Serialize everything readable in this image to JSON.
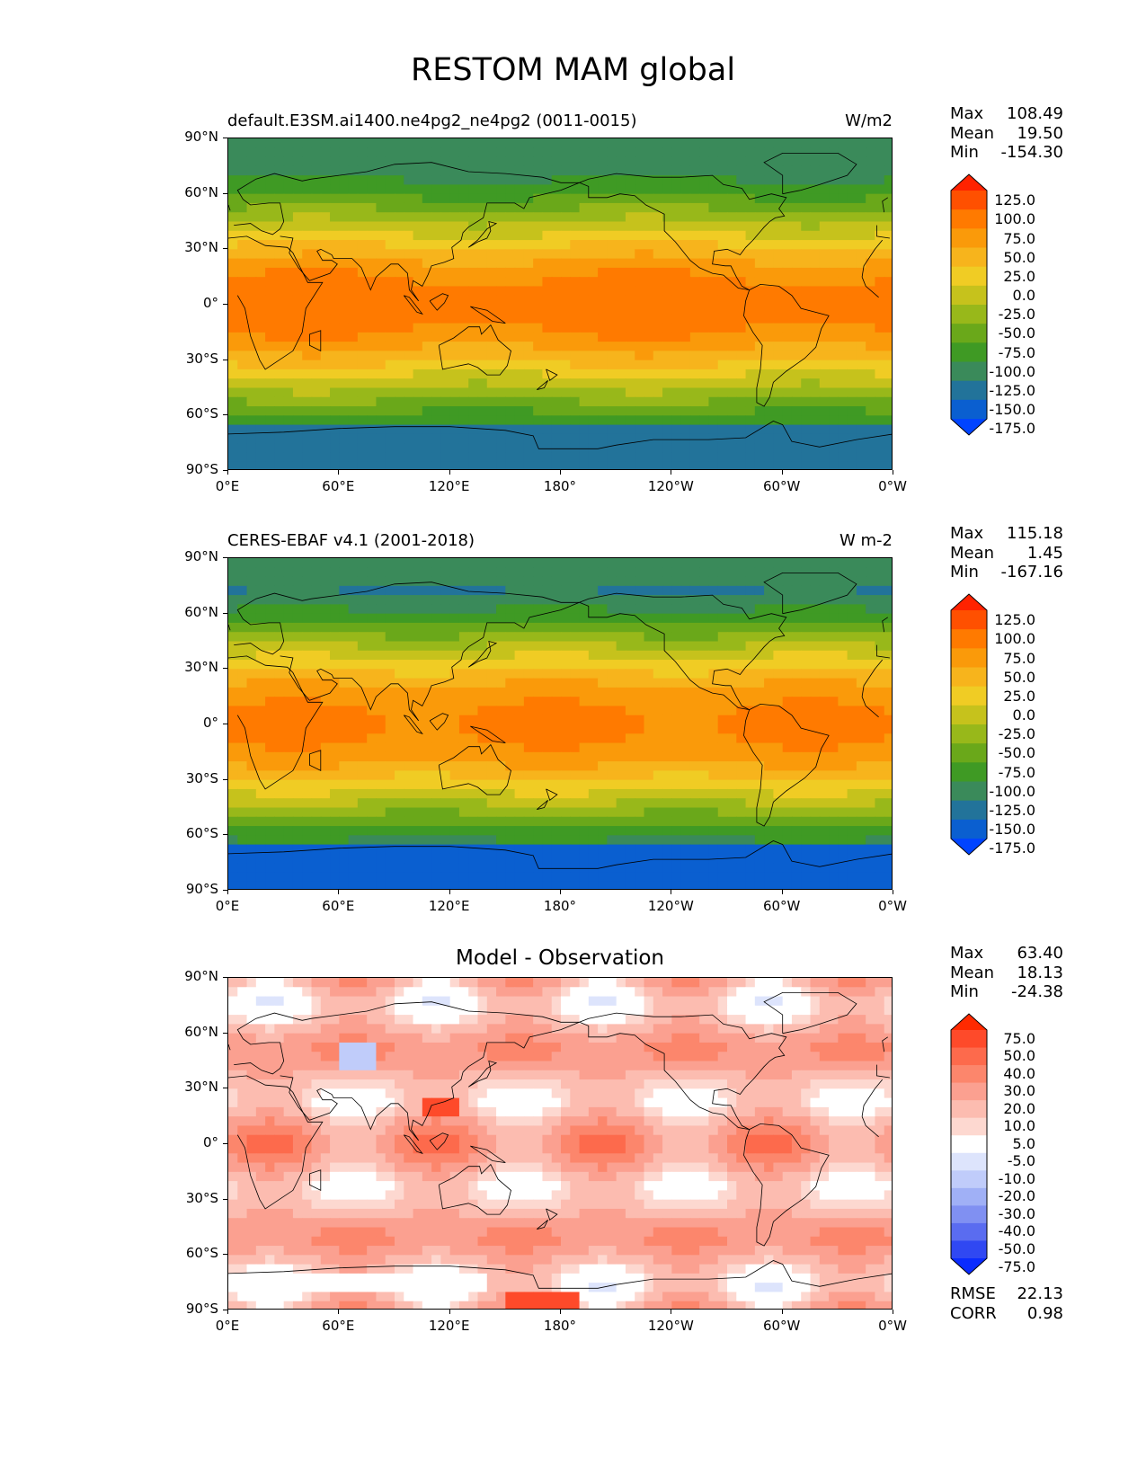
{
  "figure": {
    "title": "RESTOM MAM global"
  },
  "axes": {
    "lat_ticks": [
      "90°N",
      "60°N",
      "30°N",
      "0°",
      "30°S",
      "60°S",
      "90°S"
    ],
    "lon_ticks": [
      "0°E",
      "60°E",
      "120°E",
      "180°",
      "120°W",
      "60°W",
      "0°W"
    ]
  },
  "panels": [
    {
      "id": "model",
      "title": "default.E3SM.ai1400.ne4pg2_ne4pg2 (0011-0015)",
      "title_centered": false,
      "units": "W/m2",
      "stats": [
        {
          "label": "Max",
          "value": "108.49"
        },
        {
          "label": "Mean",
          "value": "19.50"
        },
        {
          "label": "Min",
          "value": "-154.30"
        }
      ],
      "colorbar": {
        "labels": [
          "125.0",
          "100.0",
          "75.0",
          "50.0",
          "25.0",
          "0.0",
          "-25.0",
          "-50.0",
          "-75.0",
          "-100.0",
          "-125.0",
          "-150.0",
          "-175.0"
        ],
        "colors": [
          "#ff2200",
          "#ff5000",
          "#ff7a00",
          "#fa9a0a",
          "#f7b41c",
          "#f0cc24",
          "#c6c21c",
          "#98b81a",
          "#6aa81a",
          "#3f9a24",
          "#3a8a5a",
          "#22739a",
          "#0a5fd0",
          "#0044ff"
        ]
      },
      "field": "model"
    },
    {
      "id": "obs",
      "title": "CERES-EBAF v4.1 (2001-2018)",
      "title_centered": false,
      "units": "W m-2",
      "stats": [
        {
          "label": "Max",
          "value": "115.18"
        },
        {
          "label": "Mean",
          "value": "1.45"
        },
        {
          "label": "Min",
          "value": "-167.16"
        }
      ],
      "colorbar": {
        "labels": [
          "125.0",
          "100.0",
          "75.0",
          "50.0",
          "25.0",
          "0.0",
          "-25.0",
          "-50.0",
          "-75.0",
          "-100.0",
          "-125.0",
          "-150.0",
          "-175.0"
        ],
        "colors": [
          "#ff2200",
          "#ff5000",
          "#ff7a00",
          "#fa9a0a",
          "#f7b41c",
          "#f0cc24",
          "#c6c21c",
          "#98b81a",
          "#6aa81a",
          "#3f9a24",
          "#3a8a5a",
          "#22739a",
          "#0a5fd0",
          "#0044ff"
        ]
      },
      "field": "obs"
    },
    {
      "id": "diff",
      "title": "Model - Observation",
      "title_centered": true,
      "units": "",
      "stats": [
        {
          "label": "Max",
          "value": "63.40"
        },
        {
          "label": "Mean",
          "value": "18.13"
        },
        {
          "label": "Min",
          "value": "-24.38"
        }
      ],
      "extra_stats": [
        {
          "label": "RMSE",
          "value": "22.13"
        },
        {
          "label": "CORR",
          "value": "0.98"
        }
      ],
      "colorbar": {
        "labels": [
          "75.0",
          "50.0",
          "40.0",
          "30.0",
          "20.0",
          "10.0",
          "5.0",
          "-5.0",
          "-10.0",
          "-20.0",
          "-30.0",
          "-40.0",
          "-50.0",
          "-75.0"
        ],
        "colors": [
          "#ff2a00",
          "#fe4a2a",
          "#fd6a4c",
          "#fc866c",
          "#fba090",
          "#fcbcb0",
          "#fdd8d0",
          "#ffffff",
          "#dde4fc",
          "#c0ccfa",
          "#a0b0f6",
          "#8090f2",
          "#5a6cf0",
          "#3048f2",
          "#0a2bff"
        ]
      },
      "field": "diff"
    }
  ]
}
